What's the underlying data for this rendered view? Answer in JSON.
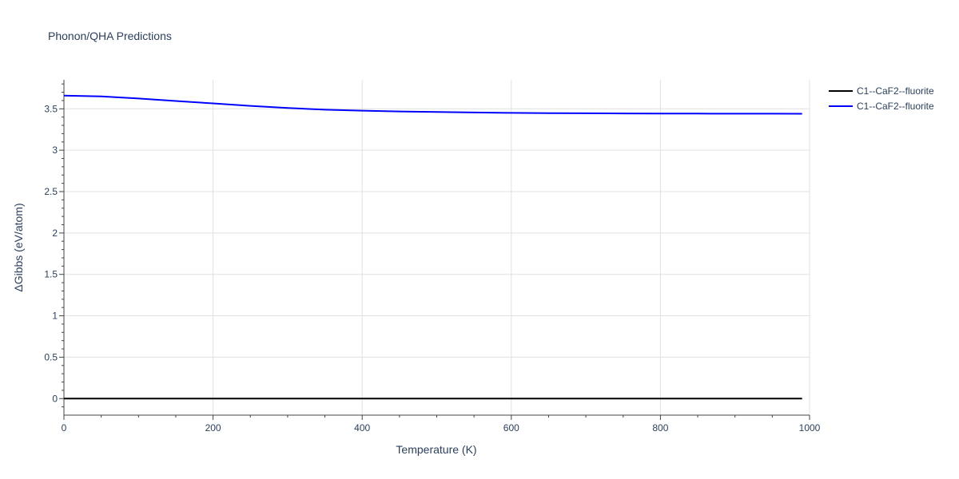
{
  "colors": {
    "grid": "#e0e0e0",
    "axis": "#444444",
    "text": "#2a3f5f",
    "zero_line": "#444444"
  },
  "chart_data": {
    "type": "line",
    "title": "Phonon/QHA Predictions",
    "xlabel": "Temperature (K)",
    "ylabel": "ΔGibbs (eV/atom)",
    "xlim": [
      0,
      1000
    ],
    "ylim": [
      -0.2,
      3.85
    ],
    "x_ticks": [
      0,
      200,
      400,
      600,
      800,
      1000
    ],
    "x_tick_labels": [
      "0",
      "200",
      "400",
      "600",
      "800",
      "1000"
    ],
    "y_ticks": [
      0,
      0.5,
      1,
      1.5,
      2,
      2.5,
      3,
      3.5
    ],
    "y_tick_labels": [
      "0",
      "0.5",
      "1",
      "1.5",
      "2",
      "2.5",
      "3",
      "3.5"
    ],
    "grid": true,
    "legend_position": "top-right",
    "series": [
      {
        "name": "C1--CaF2--fluorite",
        "color": "#000000",
        "x": [
          0,
          100,
          200,
          300,
          400,
          500,
          600,
          700,
          800,
          900,
          990
        ],
        "y": [
          0,
          0,
          0,
          0,
          0,
          0,
          0,
          0,
          0,
          0,
          0
        ]
      },
      {
        "name": "C1--CaF2--fluorite",
        "color": "#0000ff",
        "x": [
          0,
          50,
          100,
          150,
          200,
          250,
          300,
          350,
          400,
          450,
          500,
          550,
          600,
          650,
          700,
          750,
          800,
          850,
          900,
          950,
          990
        ],
        "y": [
          3.66,
          3.65,
          3.625,
          3.595,
          3.565,
          3.535,
          3.51,
          3.49,
          3.478,
          3.468,
          3.462,
          3.456,
          3.451,
          3.448,
          3.446,
          3.444,
          3.443,
          3.442,
          3.441,
          3.441,
          3.44
        ]
      }
    ]
  }
}
